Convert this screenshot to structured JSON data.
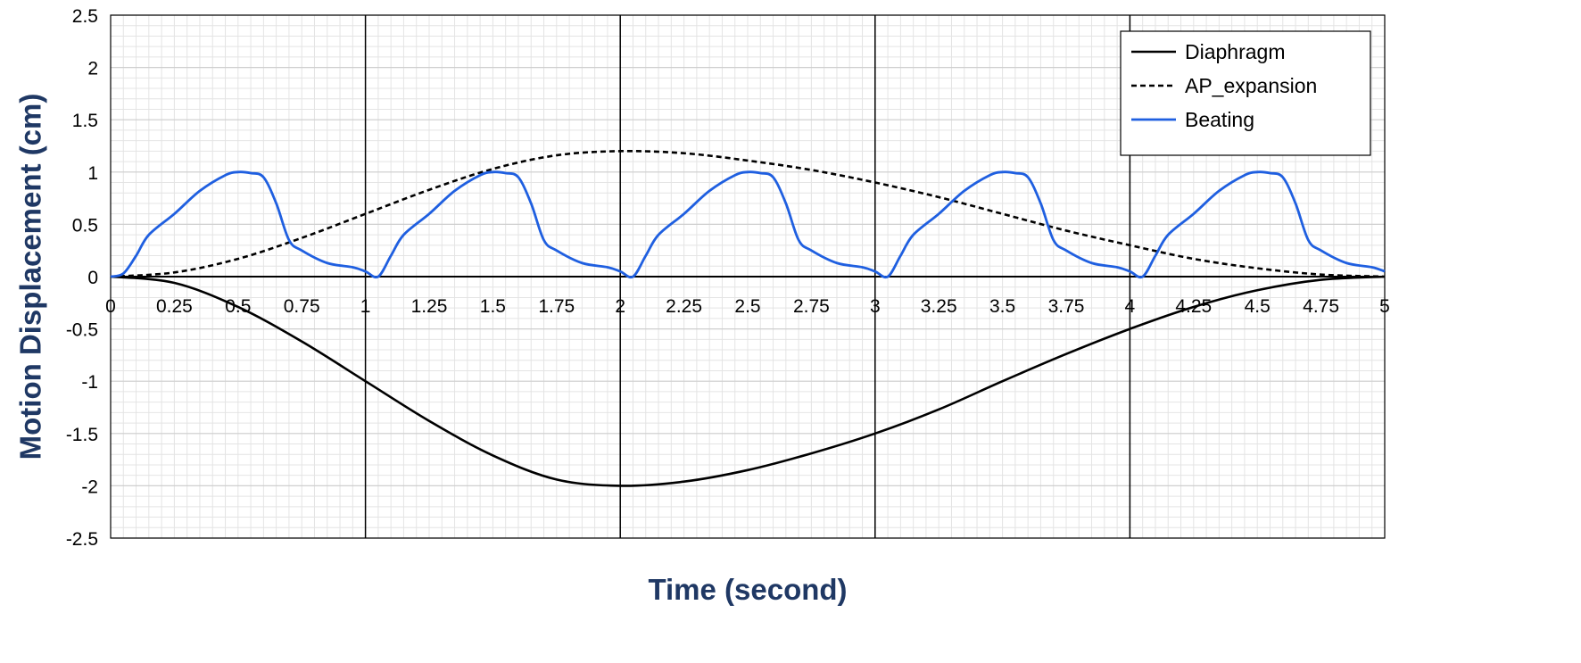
{
  "chart_data": {
    "type": "line",
    "title": "",
    "xlabel": "Time (second)",
    "ylabel": "Motion Displacement (cm)",
    "xlim": [
      0,
      5
    ],
    "ylim": [
      -2.5,
      2.5
    ],
    "x_major_ticks": [
      0,
      1,
      2,
      3,
      4,
      5
    ],
    "x_tick_labels": [
      {
        "value": 0,
        "label": "0"
      },
      {
        "value": 0.25,
        "label": "0.25"
      },
      {
        "value": 0.5,
        "label": "0.5"
      },
      {
        "value": 0.75,
        "label": "0.75"
      },
      {
        "value": 1,
        "label": "1"
      },
      {
        "value": 1.25,
        "label": "1.25"
      },
      {
        "value": 1.5,
        "label": "1.5"
      },
      {
        "value": 1.75,
        "label": "1.75"
      },
      {
        "value": 2,
        "label": "2"
      },
      {
        "value": 2.25,
        "label": "2.25"
      },
      {
        "value": 2.5,
        "label": "2.5"
      },
      {
        "value": 2.75,
        "label": "2.75"
      },
      {
        "value": 3,
        "label": "3"
      },
      {
        "value": 3.25,
        "label": "3.25"
      },
      {
        "value": 3.5,
        "label": "3.5"
      },
      {
        "value": 3.75,
        "label": "3.75"
      },
      {
        "value": 4,
        "label": "4"
      },
      {
        "value": 4.25,
        "label": "4.25"
      },
      {
        "value": 4.5,
        "label": "4.5"
      },
      {
        "value": 4.75,
        "label": "4.75"
      },
      {
        "value": 5,
        "label": "5"
      }
    ],
    "y_tick_labels": [
      {
        "value": 2.5,
        "label": "2.5"
      },
      {
        "value": 2,
        "label": "2"
      },
      {
        "value": 1.5,
        "label": "1.5"
      },
      {
        "value": 1,
        "label": "1"
      },
      {
        "value": 0.5,
        "label": "0.5"
      },
      {
        "value": 0,
        "label": "0"
      },
      {
        "value": -0.5,
        "label": "-0.5"
      },
      {
        "value": -1,
        "label": "-1"
      },
      {
        "value": -1.5,
        "label": "-1.5"
      },
      {
        "value": -2,
        "label": "-2"
      },
      {
        "value": -2.5,
        "label": "-2.5"
      }
    ],
    "grid": true,
    "legend_position": "top-right",
    "series": [
      {
        "name": "Diaphragm",
        "color": "#000000",
        "style": "solid",
        "x": [
          0,
          0.25,
          0.5,
          0.75,
          1,
          1.25,
          1.5,
          1.75,
          2,
          2.25,
          2.5,
          2.75,
          3,
          3.25,
          3.5,
          3.75,
          4,
          4.25,
          4.5,
          4.75,
          5
        ],
        "y": [
          0,
          -0.06,
          -0.29,
          -0.62,
          -1.0,
          -1.38,
          -1.71,
          -1.94,
          -2.0,
          -1.96,
          -1.85,
          -1.69,
          -1.5,
          -1.27,
          -1.0,
          -0.74,
          -0.5,
          -0.29,
          -0.13,
          -0.03,
          0
        ]
      },
      {
        "name": "AP_expansion",
        "color": "#000000",
        "style": "dashed",
        "x": [
          0,
          0.25,
          0.5,
          0.75,
          1,
          1.25,
          1.5,
          1.75,
          2,
          2.25,
          2.5,
          2.75,
          3,
          3.25,
          3.5,
          3.75,
          4,
          4.25,
          4.5,
          4.75,
          5
        ],
        "y": [
          0,
          0.04,
          0.17,
          0.37,
          0.6,
          0.83,
          1.03,
          1.16,
          1.2,
          1.18,
          1.11,
          1.02,
          0.9,
          0.76,
          0.6,
          0.44,
          0.3,
          0.17,
          0.08,
          0.02,
          0
        ]
      },
      {
        "name": "Beating",
        "color": "#1f5fe0",
        "style": "solid",
        "x": [
          0,
          0.05,
          0.1,
          0.15,
          0.25,
          0.35,
          0.45,
          0.5,
          0.55,
          0.6,
          0.65,
          0.7,
          0.75,
          0.85,
          0.95,
          1.0,
          1.05,
          1.1,
          1.15,
          1.25,
          1.35,
          1.45,
          1.5,
          1.55,
          1.6,
          1.65,
          1.7,
          1.75,
          1.85,
          1.95,
          2.0,
          2.05,
          2.1,
          2.15,
          2.25,
          2.35,
          2.45,
          2.5,
          2.55,
          2.6,
          2.65,
          2.7,
          2.75,
          2.85,
          2.95,
          3.0,
          3.05,
          3.1,
          3.15,
          3.25,
          3.35,
          3.45,
          3.5,
          3.55,
          3.6,
          3.65,
          3.7,
          3.75,
          3.85,
          3.95,
          4.0,
          4.05,
          4.1,
          4.15,
          4.25,
          4.35,
          4.45,
          4.5,
          4.55,
          4.6,
          4.65,
          4.7,
          4.75,
          4.85,
          4.95,
          5.0
        ],
        "y": [
          0,
          0.03,
          0.2,
          0.4,
          0.6,
          0.82,
          0.97,
          1.0,
          0.99,
          0.95,
          0.7,
          0.35,
          0.25,
          0.13,
          0.09,
          0.05,
          0.0,
          0.2,
          0.4,
          0.6,
          0.82,
          0.97,
          1.0,
          0.99,
          0.95,
          0.7,
          0.35,
          0.25,
          0.13,
          0.09,
          0.05,
          0.0,
          0.2,
          0.4,
          0.6,
          0.82,
          0.97,
          1.0,
          0.99,
          0.95,
          0.7,
          0.35,
          0.25,
          0.13,
          0.09,
          0.05,
          0.0,
          0.2,
          0.4,
          0.6,
          0.82,
          0.97,
          1.0,
          0.99,
          0.95,
          0.7,
          0.35,
          0.25,
          0.13,
          0.09,
          0.05,
          0.0,
          0.2,
          0.4,
          0.6,
          0.82,
          0.97,
          1.0,
          0.99,
          0.95,
          0.7,
          0.35,
          0.25,
          0.13,
          0.09,
          0.05
        ]
      }
    ]
  }
}
